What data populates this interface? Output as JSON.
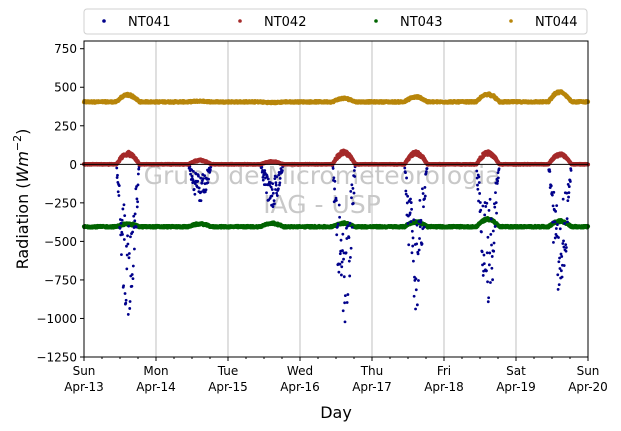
{
  "chart_data": {
    "type": "scatter",
    "xlabel": "Day",
    "ylabel": "Radiation (Wm⁻²)",
    "ylabel_main": "Radiation (",
    "ylabel_unit": "Wm",
    "ylabel_exp": "−2",
    "ylabel_close": ")",
    "ylim": [
      -1250,
      800
    ],
    "xlim": [
      "2014-04-13",
      "2014-04-20"
    ],
    "yticks": [
      {
        "value": 750,
        "label": "750"
      },
      {
        "value": 500,
        "label": "500"
      },
      {
        "value": 250,
        "label": "250"
      },
      {
        "value": 0,
        "label": "0"
      },
      {
        "value": -250,
        "label": "−250"
      },
      {
        "value": -500,
        "label": "−500"
      },
      {
        "value": -750,
        "label": "−750"
      },
      {
        "value": -1000,
        "label": "−1000"
      },
      {
        "value": -1250,
        "label": "−1250"
      }
    ],
    "xticks": [
      {
        "day": 0,
        "dow": "Sun",
        "date": "Apr-13"
      },
      {
        "day": 1,
        "dow": "Mon",
        "date": "Apr-14"
      },
      {
        "day": 2,
        "dow": "Tue",
        "date": "Apr-15"
      },
      {
        "day": 3,
        "dow": "Wed",
        "date": "Apr-16"
      },
      {
        "day": 4,
        "dow": "Thu",
        "date": "Apr-17"
      },
      {
        "day": 5,
        "dow": "Fri",
        "date": "Apr-18"
      },
      {
        "day": 6,
        "dow": "Sat",
        "date": "Apr-19"
      },
      {
        "day": 7,
        "dow": "Sun",
        "date": "Apr-20"
      }
    ],
    "grid": "vertical",
    "legend_position": "top",
    "watermark": [
      "Grupo de Micrometeorologia",
      "IAG - USP"
    ],
    "series": [
      {
        "name": "NT041",
        "color": "#00008b",
        "baseline": 0,
        "daily_min": [
          -1010,
          -265,
          -280,
          -1040,
          -1000,
          -940,
          -860
        ]
      },
      {
        "name": "NT042",
        "color": "#a52a2a",
        "baseline": 0,
        "daily_max": [
          80,
          30,
          20,
          90,
          85,
          85,
          75
        ]
      },
      {
        "name": "NT043",
        "color": "#006400",
        "baseline": -405,
        "daily_max": [
          -385,
          -385,
          -380,
          -380,
          -370,
          -350,
          -365
        ]
      },
      {
        "name": "NT044",
        "color": "#b8860b",
        "baseline": 405,
        "daily_max": [
          455,
          410,
          400,
          430,
          440,
          460,
          475
        ]
      }
    ]
  }
}
